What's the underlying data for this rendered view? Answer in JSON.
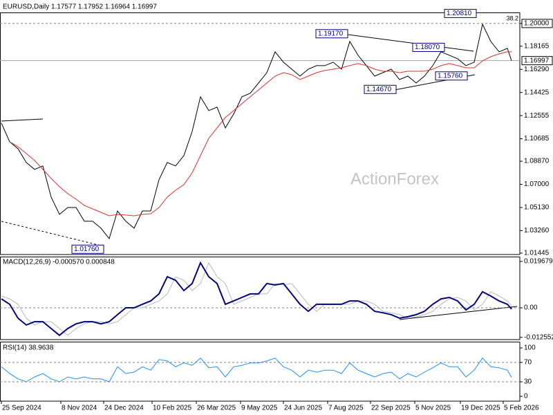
{
  "chart_data": [
    {
      "type": "line",
      "title": "EURUSD,Daily  1.17577 1.17952 1.16964 1.16997",
      "watermark": "ActionForex",
      "x": [
        0,
        6,
        12,
        18,
        24,
        30,
        36,
        42,
        48,
        54,
        60,
        66,
        72,
        78,
        84,
        90,
        96,
        102,
        108,
        114,
        120,
        126,
        132,
        138,
        144,
        150,
        156,
        162,
        168,
        174,
        180,
        186,
        192,
        198,
        204,
        210,
        216,
        222,
        228,
        234,
        240,
        246,
        252,
        258,
        264,
        270,
        276,
        282,
        288,
        294,
        300,
        306,
        312,
        318,
        324,
        330,
        336,
        342,
        348,
        354,
        360,
        366,
        369
      ],
      "xlim": [
        -1,
        375
      ],
      "ylim": [
        1.0133,
        1.2089
      ],
      "yticks": [
        {
          "value": 1.2,
          "label": "1.20000"
        },
        {
          "value": 1.18165,
          "label": "1.18165"
        },
        {
          "value": 1.1629,
          "label": "1.16290"
        },
        {
          "value": 1.14425,
          "label": "1.14425"
        },
        {
          "value": 1.12555,
          "label": "1.12555"
        },
        {
          "value": 1.10685,
          "label": "1.10685"
        },
        {
          "value": 1.0887,
          "label": "1.08870"
        },
        {
          "value": 1.07,
          "label": "1.07000"
        },
        {
          "value": 1.0513,
          "label": "1.05130"
        },
        {
          "value": 1.0326,
          "label": "1.03260"
        },
        {
          "value": 1.01445,
          "label": "1.01445"
        }
      ],
      "levels": [
        {
          "value": 1.2,
          "label": "38.2"
        }
      ],
      "last": {
        "value": 1.16997,
        "label": "1.16997"
      },
      "price_labels": [
        {
          "value": 1.2081,
          "label": "1.20810"
        },
        {
          "value": 1.1917,
          "label": "1.19170"
        },
        {
          "value": 1.1807,
          "label": "1.18070"
        },
        {
          "value": 1.1576,
          "label": "1.15760"
        },
        {
          "value": 1.1467,
          "label": "1.14670"
        },
        {
          "value": 1.0176,
          "label": "1.01760"
        }
      ],
      "series": [
        {
          "color": "#000000",
          "width": 1,
          "values": [
            1.1195,
            1.1044,
            1.0988,
            1.0877,
            1.0821,
            1.0849,
            1.0597,
            1.0457,
            1.0513,
            1.0513,
            1.0402,
            1.0402,
            1.0346,
            1.0262,
            1.0485,
            1.0402,
            1.0346,
            1.0485,
            1.0485,
            1.0737,
            1.0877,
            1.0849,
            1.0933,
            1.1128,
            1.1408,
            1.1296,
            1.1324,
            1.1156,
            1.1268,
            1.1408,
            1.1436,
            1.1519,
            1.1603,
            1.1771,
            1.1687,
            1.1631,
            1.1575,
            1.1631,
            1.1659,
            1.1659,
            1.1687,
            1.1631,
            1.1855,
            1.1743,
            1.1659,
            1.1575,
            1.1603,
            1.1631,
            1.1547,
            1.1575,
            1.1519,
            1.1575,
            1.1659,
            1.1771,
            1.1743,
            1.1715,
            1.1659,
            1.1687,
            1.1994,
            1.1855,
            1.1771,
            1.1799,
            1.16997
          ]
        },
        {
          "color": "#e0302f",
          "width": 1,
          "values": [
            null,
            1.1044,
            1.1005,
            1.0949,
            1.0893,
            1.0821,
            1.0748,
            1.0681,
            1.0625,
            1.058,
            1.053,
            1.0502,
            1.0474,
            1.0446,
            1.0457,
            1.0452,
            1.0446,
            1.0457,
            1.0463,
            1.0513,
            1.0597,
            1.0653,
            1.0698,
            1.0793,
            1.0933,
            1.1072,
            1.1156,
            1.124,
            1.1296,
            1.1352,
            1.1408,
            1.1463,
            1.1519,
            1.1575,
            1.1603,
            1.1586,
            1.1547,
            1.1575,
            1.1603,
            1.162,
            1.1631,
            1.1642,
            1.1659,
            1.1676,
            1.1659,
            1.1631,
            1.1614,
            1.1614,
            1.1603,
            1.1614,
            1.1614,
            1.1614,
            1.1631,
            1.1659,
            1.1676,
            1.1659,
            1.1642,
            1.1642,
            1.1698,
            1.1732,
            1.1754,
            1.1771,
            1.1771
          ]
        }
      ]
    },
    {
      "type": "line",
      "title": "MACD(12,26,9) -0.000570 0.000848",
      "x": [
        0,
        6,
        12,
        18,
        24,
        30,
        36,
        42,
        48,
        54,
        60,
        66,
        72,
        78,
        84,
        90,
        96,
        102,
        108,
        114,
        120,
        126,
        132,
        138,
        144,
        150,
        156,
        162,
        168,
        174,
        180,
        186,
        192,
        198,
        204,
        210,
        216,
        222,
        228,
        234,
        240,
        246,
        252,
        258,
        264,
        270,
        276,
        282,
        288,
        294,
        300,
        306,
        312,
        318,
        324,
        330,
        336,
        342,
        348,
        354,
        360,
        366,
        369
      ],
      "xlim": [
        -1,
        375
      ],
      "ylim": [
        -0.01351,
        0.02144
      ],
      "yticks": [
        0.019679,
        {
          "value": 0,
          "label": "0.00"
        },
        -0.012552
      ],
      "levels": [
        {
          "value": 0
        }
      ],
      "series": [
        {
          "color": "#b8b8b8",
          "width": 1,
          "values": [
            0.005,
            0.0038,
            0.0015,
            -0.0044,
            -0.0073,
            -0.0059,
            -0.0059,
            -0.0088,
            -0.0117,
            -0.0088,
            -0.0068,
            -0.0059,
            -0.0059,
            -0.0068,
            -0.0059,
            -0.0029,
            0,
            0,
            0.0015,
            0.0029,
            0.0059,
            0.0132,
            0.0117,
            0.0073,
            0.0103,
            0.0191,
            0.0132,
            0.0103,
            0.0015,
            0.0029,
            0.0044,
            0.0059,
            0.0059,
            0.0103,
            0.0097,
            0.0103,
            0.0059,
            0.0015,
            -0.0015,
            0.0015,
            0.0015,
            0.0015,
            0.0015,
            0.0029,
            0.0029,
            0.0015,
            -0.0015,
            -0.0021,
            -0.0029,
            -0.0044,
            -0.0038,
            -0.0029,
            -0.0015,
            0.0015,
            0.0038,
            0.0044,
            0.0029,
            -0.0009,
            0.0015,
            0.0068,
            0.005,
            0.0029,
            0.000848
          ]
        },
        {
          "color": "#000080",
          "width": 2,
          "values": [
            0.0038,
            0.0015,
            -0.0044,
            -0.0073,
            -0.0059,
            -0.0059,
            -0.0088,
            -0.0117,
            -0.0088,
            -0.0068,
            -0.0059,
            -0.0059,
            -0.0068,
            -0.0059,
            -0.0029,
            0,
            0,
            0.0015,
            0.0029,
            0.0059,
            0.0132,
            0.0117,
            0.0073,
            0.0103,
            0.0191,
            0.0132,
            0.0103,
            0.0015,
            0.0029,
            0.0044,
            0.0059,
            0.0059,
            0.0103,
            0.0097,
            0.0103,
            0.0059,
            0.0015,
            -0.0015,
            0.0015,
            0.0015,
            0.0015,
            0.0015,
            0.0029,
            0.0029,
            0.0015,
            -0.0015,
            -0.0021,
            -0.0029,
            -0.0044,
            -0.0038,
            -0.0029,
            -0.0015,
            0.0015,
            0.0038,
            0.0044,
            0.0029,
            -0.0009,
            0.0015,
            0.0068,
            0.005,
            0.0029,
            0.0015,
            -0.00057
          ]
        }
      ]
    },
    {
      "type": "line",
      "title": "RSI(14) 38.9638",
      "x": [
        0,
        6,
        12,
        18,
        24,
        30,
        36,
        42,
        48,
        54,
        60,
        66,
        72,
        78,
        84,
        90,
        96,
        102,
        108,
        114,
        120,
        126,
        132,
        138,
        144,
        150,
        156,
        162,
        168,
        174,
        180,
        186,
        192,
        198,
        204,
        210,
        216,
        222,
        228,
        234,
        240,
        246,
        252,
        258,
        264,
        270,
        276,
        282,
        288,
        294,
        300,
        306,
        312,
        318,
        324,
        330,
        336,
        342,
        348,
        354,
        360,
        366,
        369
      ],
      "xlim": [
        -1,
        375
      ],
      "ylim": [
        -10,
        111.4
      ],
      "yticks": [
        100,
        70,
        30,
        0
      ],
      "levels": [
        {
          "value": 70
        },
        {
          "value": 30
        }
      ],
      "xticks": [
        {
          "value": 0,
          "label": "25 Sep 2024"
        },
        {
          "value": 43,
          "label": "8 Nov 2024"
        },
        {
          "value": 74,
          "label": "24 Dec 2024"
        },
        {
          "value": 109,
          "label": "10 Feb 2025"
        },
        {
          "value": 141,
          "label": "26 Mar 2025"
        },
        {
          "value": 173,
          "label": "9 May 2025"
        },
        {
          "value": 204,
          "label": "24 Jun 2025"
        },
        {
          "value": 236,
          "label": "7 Aug 2025"
        },
        {
          "value": 267,
          "label": "22 Sep 2025"
        },
        {
          "value": 299,
          "label": "5 Nov 2025"
        },
        {
          "value": 332,
          "label": "19 Dec 2025"
        },
        {
          "value": 363,
          "label": "5 Feb 2026"
        }
      ],
      "series": [
        {
          "color": "#1e90ff",
          "width": 1,
          "values": [
            61,
            47,
            36,
            30,
            40,
            47,
            36,
            30,
            40,
            36,
            40,
            36,
            36,
            30,
            61,
            47,
            50,
            61,
            54,
            76,
            73,
            61,
            69,
            64,
            79,
            59,
            61,
            40,
            61,
            64,
            69,
            69,
            73,
            79,
            61,
            54,
            40,
            54,
            50,
            54,
            54,
            47,
            69,
            54,
            47,
            40,
            47,
            50,
            36,
            47,
            40,
            50,
            59,
            69,
            61,
            61,
            40,
            54,
            79,
            61,
            59,
            54,
            38.9638
          ]
        }
      ]
    }
  ]
}
